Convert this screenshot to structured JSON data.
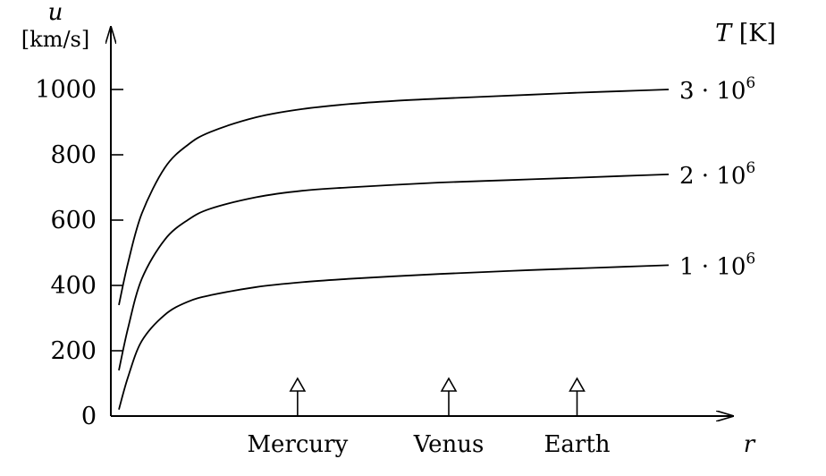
{
  "chart_data": {
    "type": "line",
    "title": "",
    "ylabel": "u",
    "ylabel_unit": "[km/s]",
    "xlabel": "r",
    "legend_title": "T [K]",
    "ylim": [
      0,
      1000
    ],
    "yticks": [
      "0",
      "200",
      "400",
      "600",
      "800",
      "1000"
    ],
    "grid": false,
    "markers": [
      {
        "label": "Mercury",
        "x": 0.39
      },
      {
        "label": "Venus",
        "x": 0.72
      },
      {
        "label": "Earth",
        "x": 1.0
      }
    ],
    "series": [
      {
        "name": "3·10^6",
        "label_base": "3 · 10",
        "label_exp": "6",
        "x": [
          0.0,
          0.02,
          0.05,
          0.1,
          0.15,
          0.2,
          0.3,
          0.4,
          0.5,
          0.6,
          0.7,
          0.8,
          0.9,
          1.0,
          1.1,
          1.2
        ],
        "values": [
          340,
          470,
          620,
          760,
          830,
          870,
          915,
          940,
          955,
          965,
          972,
          978,
          984,
          990,
          995,
          1000
        ]
      },
      {
        "name": "2·10^6",
        "label_base": "2 · 10",
        "label_exp": "6",
        "x": [
          0.0,
          0.02,
          0.05,
          0.1,
          0.15,
          0.2,
          0.3,
          0.4,
          0.5,
          0.6,
          0.7,
          0.8,
          0.9,
          1.0,
          1.1,
          1.2
        ],
        "values": [
          140,
          270,
          420,
          540,
          600,
          635,
          670,
          690,
          700,
          708,
          715,
          720,
          725,
          730,
          735,
          740
        ]
      },
      {
        "name": "1·10^6",
        "label_base": "1 · 10",
        "label_exp": "6",
        "x": [
          0.0,
          0.02,
          0.05,
          0.1,
          0.15,
          0.2,
          0.3,
          0.4,
          0.5,
          0.6,
          0.7,
          0.8,
          0.9,
          1.0,
          1.1,
          1.2
        ],
        "values": [
          20,
          120,
          230,
          310,
          350,
          370,
          395,
          410,
          420,
          428,
          435,
          441,
          447,
          452,
          457,
          462
        ]
      }
    ]
  }
}
